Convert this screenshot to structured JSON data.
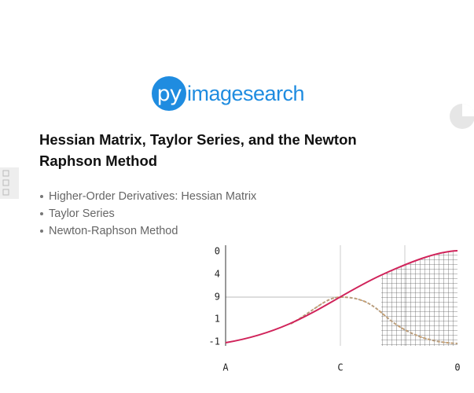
{
  "logo": {
    "badge": "py",
    "text": "imagesearch"
  },
  "title": "Hessian Matrix, Taylor Series, and the Newton Raphson Method",
  "bullets": [
    "Higher-Order Derivatives: Hessian Matrix",
    "Taylor Series",
    "Newton-Raphson Method"
  ],
  "figure": {
    "y_labels": [
      "0",
      "4",
      "9",
      "1",
      "-1"
    ],
    "x_labels": [
      "A",
      "C",
      "0"
    ]
  }
}
